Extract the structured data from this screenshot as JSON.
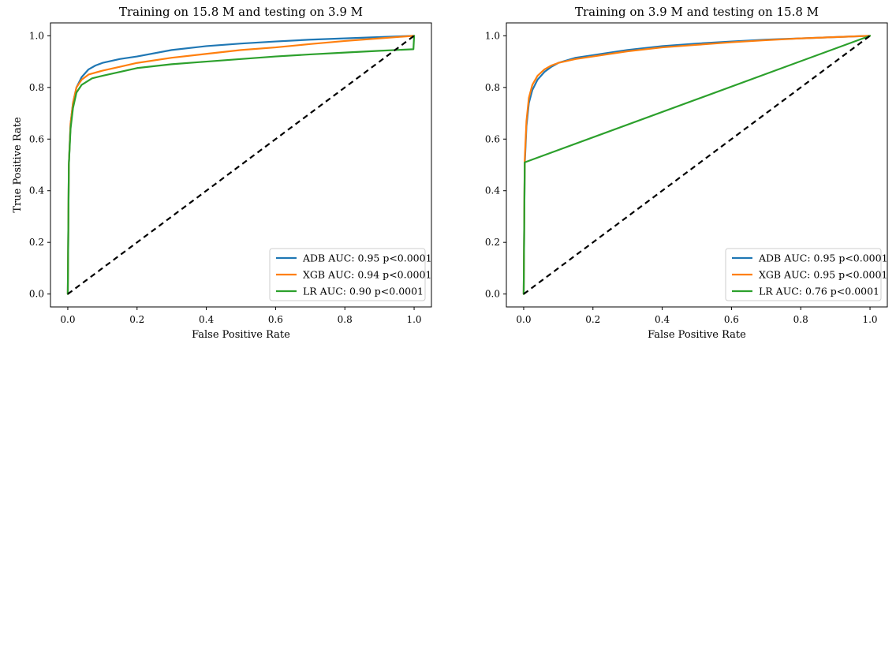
{
  "chart_data": [
    {
      "type": "line",
      "title": "Training on 15.8 M and testing on 3.9 M",
      "xlabel": "False Positive Rate",
      "ylabel": "True Positive Rate",
      "xlim": [
        -0.05,
        1.05
      ],
      "ylim": [
        -0.05,
        1.05
      ],
      "xticks": [
        "0.0",
        "0.2",
        "0.4",
        "0.6",
        "0.8",
        "1.0"
      ],
      "yticks": [
        "0.0",
        "0.2",
        "0.4",
        "0.6",
        "0.8",
        "1.0"
      ],
      "grid": false,
      "legend_position": "lower-right",
      "diagonal": {
        "style": "dashed",
        "color": "#000000",
        "points": [
          [
            0,
            0
          ],
          [
            1,
            1
          ]
        ]
      },
      "series": [
        {
          "name": "ADB AUC: 0.95 p<0.0001",
          "color": "#1f77b4",
          "points": [
            [
              0,
              0
            ],
            [
              0.003,
              0.5
            ],
            [
              0.008,
              0.66
            ],
            [
              0.015,
              0.74
            ],
            [
              0.025,
              0.8
            ],
            [
              0.04,
              0.84
            ],
            [
              0.06,
              0.87
            ],
            [
              0.08,
              0.885
            ],
            [
              0.1,
              0.895
            ],
            [
              0.15,
              0.91
            ],
            [
              0.2,
              0.92
            ],
            [
              0.3,
              0.945
            ],
            [
              0.4,
              0.96
            ],
            [
              0.5,
              0.97
            ],
            [
              0.6,
              0.978
            ],
            [
              0.7,
              0.985
            ],
            [
              0.8,
              0.99
            ],
            [
              0.9,
              0.995
            ],
            [
              1,
              1
            ]
          ]
        },
        {
          "name": "XGB AUC: 0.94 p<0.0001",
          "color": "#ff7f0e",
          "points": [
            [
              0,
              0
            ],
            [
              0.003,
              0.5
            ],
            [
              0.008,
              0.66
            ],
            [
              0.015,
              0.74
            ],
            [
              0.025,
              0.8
            ],
            [
              0.04,
              0.83
            ],
            [
              0.06,
              0.85
            ],
            [
              0.1,
              0.865
            ],
            [
              0.15,
              0.88
            ],
            [
              0.2,
              0.895
            ],
            [
              0.3,
              0.915
            ],
            [
              0.4,
              0.93
            ],
            [
              0.5,
              0.945
            ],
            [
              0.6,
              0.955
            ],
            [
              0.7,
              0.968
            ],
            [
              0.8,
              0.98
            ],
            [
              0.9,
              0.99
            ],
            [
              1,
              1
            ]
          ]
        },
        {
          "name": "LR AUC: 0.90 p<0.0001",
          "color": "#2ca02c",
          "points": [
            [
              0,
              0
            ],
            [
              0.003,
              0.5
            ],
            [
              0.008,
              0.64
            ],
            [
              0.015,
              0.72
            ],
            [
              0.025,
              0.78
            ],
            [
              0.04,
              0.81
            ],
            [
              0.07,
              0.835
            ],
            [
              0.1,
              0.845
            ],
            [
              0.15,
              0.86
            ],
            [
              0.2,
              0.875
            ],
            [
              0.3,
              0.89
            ],
            [
              0.4,
              0.9
            ],
            [
              0.5,
              0.91
            ],
            [
              0.6,
              0.92
            ],
            [
              0.7,
              0.928
            ],
            [
              0.8,
              0.935
            ],
            [
              0.9,
              0.942
            ],
            [
              0.998,
              0.948
            ],
            [
              1,
              1
            ]
          ]
        }
      ]
    },
    {
      "type": "line",
      "title": "Training on 3.9 M and testing on 15.8 M",
      "xlabel": "False Positive Rate",
      "ylabel": "",
      "xlim": [
        -0.05,
        1.05
      ],
      "ylim": [
        -0.05,
        1.05
      ],
      "xticks": [
        "0.0",
        "0.2",
        "0.4",
        "0.6",
        "0.8",
        "1.0"
      ],
      "yticks": [
        "0.0",
        "0.2",
        "0.4",
        "0.6",
        "0.8",
        "1.0"
      ],
      "grid": false,
      "legend_position": "lower-right",
      "diagonal": {
        "style": "dashed",
        "color": "#000000",
        "points": [
          [
            0,
            0
          ],
          [
            1,
            1
          ]
        ]
      },
      "series": [
        {
          "name": "ADB AUC: 0.95 p<0.0001",
          "color": "#1f77b4",
          "points": [
            [
              0,
              0
            ],
            [
              0.003,
              0.5
            ],
            [
              0.008,
              0.65
            ],
            [
              0.015,
              0.74
            ],
            [
              0.025,
              0.79
            ],
            [
              0.04,
              0.83
            ],
            [
              0.06,
              0.86
            ],
            [
              0.08,
              0.88
            ],
            [
              0.1,
              0.895
            ],
            [
              0.15,
              0.915
            ],
            [
              0.2,
              0.925
            ],
            [
              0.3,
              0.945
            ],
            [
              0.4,
              0.96
            ],
            [
              0.5,
              0.97
            ],
            [
              0.6,
              0.978
            ],
            [
              0.7,
              0.985
            ],
            [
              0.8,
              0.99
            ],
            [
              0.9,
              0.995
            ],
            [
              1,
              1
            ]
          ]
        },
        {
          "name": "XGB AUC: 0.95 p<0.0001",
          "color": "#ff7f0e",
          "points": [
            [
              0,
              0
            ],
            [
              0.003,
              0.52
            ],
            [
              0.008,
              0.67
            ],
            [
              0.015,
              0.76
            ],
            [
              0.025,
              0.81
            ],
            [
              0.04,
              0.845
            ],
            [
              0.06,
              0.87
            ],
            [
              0.08,
              0.885
            ],
            [
              0.1,
              0.895
            ],
            [
              0.15,
              0.91
            ],
            [
              0.2,
              0.92
            ],
            [
              0.3,
              0.94
            ],
            [
              0.4,
              0.955
            ],
            [
              0.5,
              0.965
            ],
            [
              0.6,
              0.975
            ],
            [
              0.7,
              0.983
            ],
            [
              0.8,
              0.99
            ],
            [
              0.9,
              0.995
            ],
            [
              1,
              1
            ]
          ]
        },
        {
          "name": "LR AUC: 0.76 p<0.0001",
          "color": "#2ca02c",
          "points": [
            [
              0,
              0
            ],
            [
              0.003,
              0.51
            ],
            [
              1,
              1
            ]
          ]
        }
      ]
    }
  ]
}
